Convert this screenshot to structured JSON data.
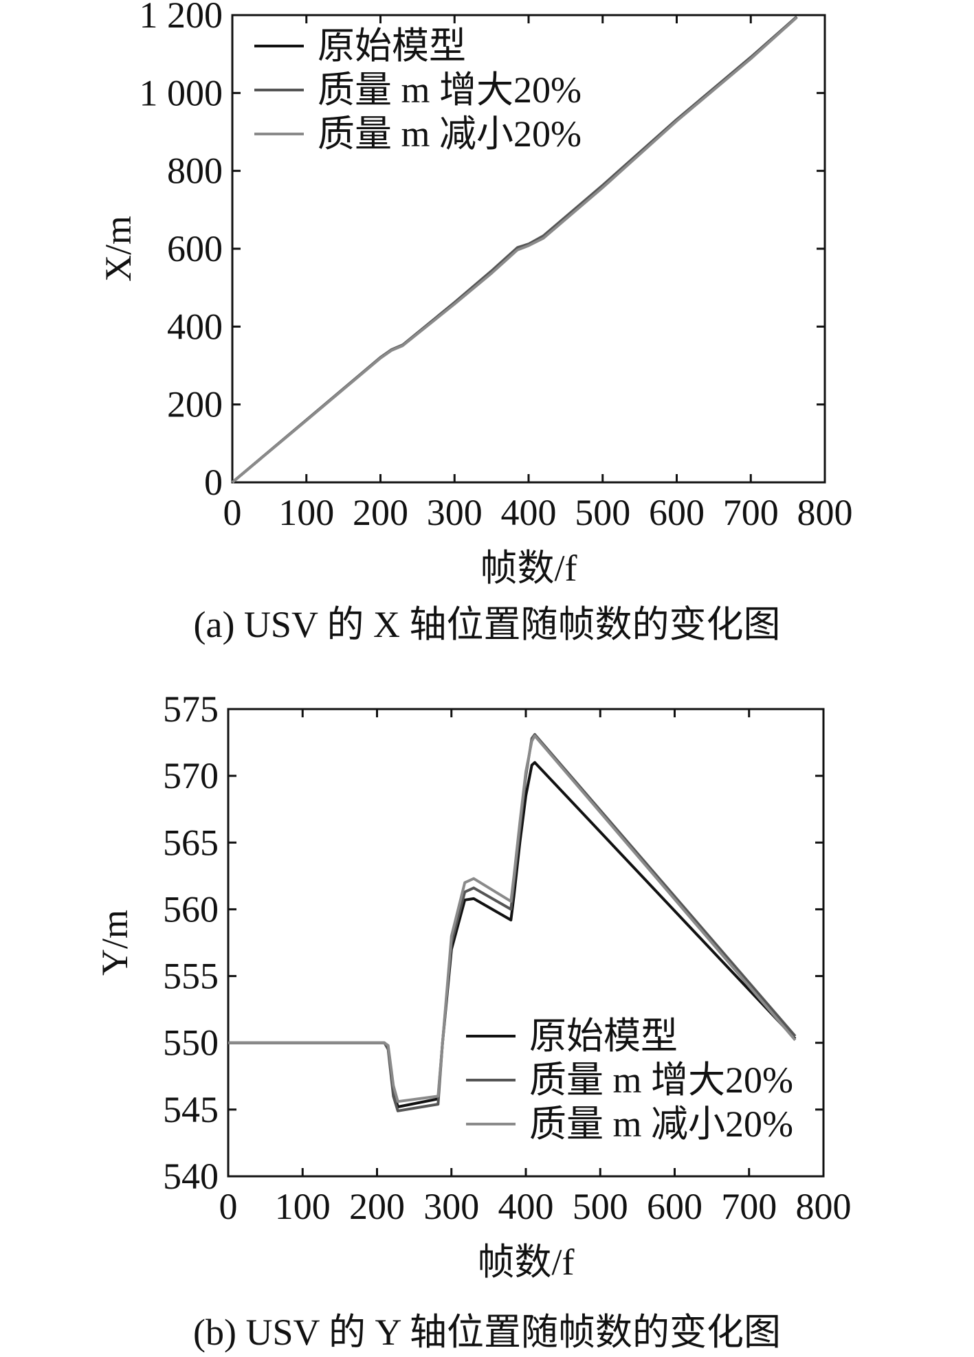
{
  "chart_data": [
    {
      "type": "line",
      "caption": "(a) USV 的 X 轴位置随帧数的变化图",
      "xlabel": "帧数/f",
      "ylabel": "X/m",
      "xlim": [
        0,
        800
      ],
      "ylim": [
        0,
        1200
      ],
      "xticks": [
        0,
        100,
        200,
        300,
        400,
        500,
        600,
        700,
        800
      ],
      "xtick_labels": [
        "0",
        "100",
        "200",
        "300",
        "400",
        "500",
        "600",
        "700",
        "800"
      ],
      "yticks": [
        0,
        200,
        400,
        600,
        800,
        1000,
        1200
      ],
      "ytick_labels": [
        "0",
        "200",
        "400",
        "600",
        "800",
        "1 000",
        "1 200"
      ],
      "grid": false,
      "legend_position": "top-left",
      "series": [
        {
          "name": "原始模型",
          "color": "#111111",
          "x": [
            0,
            100,
            200,
            215,
            230,
            300,
            350,
            385,
            400,
            420,
            500,
            600,
            700,
            762
          ],
          "y": [
            0,
            160,
            320,
            340,
            352,
            460,
            540,
            600,
            610,
            630,
            760,
            930,
            1090,
            1195
          ]
        },
        {
          "name": "质量 m 增大20%",
          "color": "#555555",
          "x": [
            0,
            100,
            200,
            215,
            230,
            300,
            350,
            385,
            400,
            420,
            500,
            600,
            700,
            762
          ],
          "y": [
            0,
            160,
            321,
            341,
            353,
            462,
            543,
            603,
            612,
            633,
            763,
            932,
            1092,
            1196
          ]
        },
        {
          "name": "质量 m 减小20%",
          "color": "#8a8a8a",
          "x": [
            0,
            100,
            200,
            215,
            230,
            300,
            350,
            385,
            400,
            420,
            500,
            600,
            700,
            762
          ],
          "y": [
            0,
            159,
            319,
            339,
            351,
            458,
            537,
            597,
            608,
            627,
            757,
            928,
            1088,
            1194
          ]
        }
      ]
    },
    {
      "type": "line",
      "caption": "(b) USV 的 Y 轴位置随帧数的变化图",
      "xlabel": "帧数/f",
      "ylabel": "Y/m",
      "xlim": [
        0,
        800
      ],
      "ylim": [
        540,
        575
      ],
      "xticks": [
        0,
        100,
        200,
        300,
        400,
        500,
        600,
        700,
        800
      ],
      "xtick_labels": [
        "0",
        "100",
        "200",
        "300",
        "400",
        "500",
        "600",
        "700",
        "800"
      ],
      "yticks": [
        540,
        545,
        550,
        555,
        560,
        565,
        570,
        575
      ],
      "ytick_labels": [
        "540",
        "545",
        "550",
        "555",
        "560",
        "565",
        "570",
        "575"
      ],
      "grid": false,
      "legend_position": "bottom-right",
      "series": [
        {
          "name": "原始模型",
          "color": "#111111",
          "x": [
            0,
            210,
            215,
            222,
            228,
            282,
            288,
            300,
            318,
            330,
            380,
            384,
            392,
            400,
            408,
            412,
            762
          ],
          "y": [
            550,
            550,
            549.6,
            546.5,
            545.2,
            545.8,
            550,
            557,
            560.7,
            560.8,
            559.2,
            561,
            565,
            568.5,
            570.8,
            571,
            550.3
          ]
        },
        {
          "name": "质量 m 增大20%",
          "color": "#555555",
          "x": [
            0,
            210,
            215,
            222,
            228,
            282,
            288,
            300,
            318,
            330,
            380,
            384,
            392,
            400,
            408,
            412,
            762
          ],
          "y": [
            550,
            550,
            549.5,
            546,
            544.9,
            545.4,
            550,
            557.5,
            561.3,
            561.6,
            560,
            562,
            566,
            570,
            572.8,
            573.1,
            550.5
          ]
        },
        {
          "name": "质量 m 减小20%",
          "color": "#8a8a8a",
          "x": [
            0,
            210,
            215,
            222,
            228,
            282,
            288,
            300,
            318,
            330,
            380,
            384,
            392,
            400,
            408,
            412,
            762
          ],
          "y": [
            550,
            550,
            549.8,
            546.8,
            545.6,
            546.0,
            550,
            558,
            562,
            562.3,
            560.6,
            562.5,
            566.5,
            570.3,
            572.6,
            573,
            550.2
          ]
        }
      ]
    }
  ]
}
